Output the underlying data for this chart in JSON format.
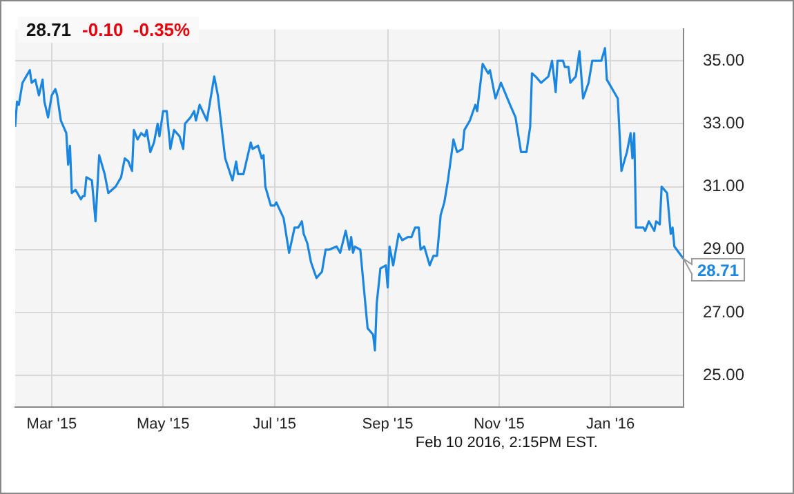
{
  "chart_data": {
    "type": "line",
    "title": "28.71",
    "subtitle": "-0.10  -0.35%",
    "annotations": [
      "Feb 10 2016, 2:15PM EST.",
      {
        "text": "28.71",
        "x": "2016-02-10",
        "y": 28.71
      }
    ],
    "x": [
      "2015-02-09",
      "2015-02-10",
      "2015-02-11",
      "2015-02-13",
      "2015-02-15",
      "2015-02-17",
      "2015-02-18",
      "2015-02-20",
      "2015-02-22",
      "2015-02-24",
      "2015-02-25",
      "2015-02-27",
      "2015-03-01",
      "2015-03-03",
      "2015-03-04",
      "2015-03-06",
      "2015-03-09",
      "2015-03-10",
      "2015-03-11",
      "2015-03-12",
      "2015-03-14",
      "2015-03-17",
      "2015-03-18",
      "2015-03-19",
      "2015-03-20",
      "2015-03-23",
      "2015-03-25",
      "2015-03-27",
      "2015-03-30",
      "2015-04-01",
      "2015-04-05",
      "2015-04-08",
      "2015-04-10",
      "2015-04-12",
      "2015-04-14",
      "2015-04-15",
      "2015-04-17",
      "2015-04-19",
      "2015-04-21",
      "2015-04-22",
      "2015-04-24",
      "2015-04-26",
      "2015-04-28",
      "2015-04-29",
      "2015-05-01",
      "2015-05-03",
      "2015-05-05",
      "2015-05-07",
      "2015-05-10",
      "2015-05-12",
      "2015-05-13",
      "2015-05-16",
      "2015-05-18",
      "2015-05-19",
      "2015-05-21",
      "2015-05-25",
      "2015-05-29",
      "2015-05-31",
      "2015-06-04",
      "2015-06-08",
      "2015-06-10",
      "2015-06-11",
      "2015-06-14",
      "2015-06-18",
      "2015-06-19",
      "2015-06-22",
      "2015-06-24",
      "2015-06-25",
      "2015-06-26",
      "2015-06-29",
      "2015-07-01",
      "2015-07-02",
      "2015-07-06",
      "2015-07-09",
      "2015-07-12",
      "2015-07-14",
      "2015-07-16",
      "2015-07-17",
      "2015-07-19",
      "2015-07-21",
      "2015-07-24",
      "2015-07-27",
      "2015-07-29",
      "2015-07-31",
      "2015-08-04",
      "2015-08-06",
      "2015-08-09",
      "2015-08-11",
      "2015-08-12",
      "2015-08-13",
      "2015-08-14",
      "2015-08-17",
      "2015-08-21",
      "2015-08-24",
      "2015-08-25",
      "2015-08-26",
      "2015-08-28",
      "2015-08-31",
      "2015-09-01",
      "2015-09-02",
      "2015-09-04",
      "2015-09-07",
      "2015-09-09",
      "2015-09-12",
      "2015-09-14",
      "2015-09-16",
      "2015-09-18",
      "2015-09-19",
      "2015-09-21",
      "2015-09-24",
      "2015-09-26",
      "2015-09-28",
      "2015-09-30",
      "2015-10-02",
      "2015-10-04",
      "2015-10-07",
      "2015-10-09",
      "2015-10-12",
      "2015-10-13",
      "2015-10-16",
      "2015-10-19",
      "2015-10-20",
      "2015-10-23",
      "2015-10-26",
      "2015-10-27",
      "2015-10-30",
      "2015-11-02",
      "2015-11-07",
      "2015-11-10",
      "2015-11-13",
      "2015-11-16",
      "2015-11-18",
      "2015-11-19",
      "2015-11-21",
      "2015-11-24",
      "2015-11-26",
      "2015-11-28",
      "2015-11-30",
      "2015-12-02",
      "2015-12-03",
      "2015-12-06",
      "2015-12-07",
      "2015-12-09",
      "2015-12-10",
      "2015-12-13",
      "2015-12-15",
      "2015-12-17",
      "2015-12-20",
      "2015-12-22",
      "2015-12-27",
      "2015-12-29",
      "2015-12-30",
      "2016-01-05",
      "2016-01-07",
      "2016-01-10",
      "2016-01-12",
      "2016-01-13",
      "2016-01-14",
      "2016-01-15",
      "2016-01-19",
      "2016-01-20",
      "2016-01-22",
      "2016-01-25",
      "2016-01-26",
      "2016-01-28",
      "2016-01-29",
      "2016-02-01",
      "2016-02-03",
      "2016-02-04",
      "2016-02-05",
      "2016-02-10"
    ],
    "series": [
      {
        "color": "#1a86e0",
        "values": [
          32.9,
          33.7,
          33.6,
          34.3,
          34.5,
          34.7,
          34.3,
          34.4,
          33.9,
          34.4,
          33.7,
          33.2,
          33.9,
          34.1,
          33.9,
          33.1,
          32.7,
          31.7,
          32.3,
          30.8,
          30.9,
          30.6,
          30.7,
          30.7,
          31.3,
          31.2,
          29.9,
          32.0,
          31.4,
          30.8,
          31.0,
          31.3,
          31.9,
          31.8,
          31.5,
          32.8,
          32.5,
          32.7,
          32.6,
          32.8,
          32.1,
          32.4,
          33.0,
          32.6,
          33.4,
          33.4,
          32.2,
          32.8,
          32.6,
          32.2,
          33.0,
          33.2,
          33.4,
          33.1,
          33.6,
          33.1,
          34.5,
          33.9,
          31.9,
          31.2,
          31.8,
          31.4,
          31.4,
          32.4,
          32.2,
          32.3,
          31.9,
          32.0,
          31.0,
          30.4,
          30.4,
          30.5,
          30.0,
          28.9,
          29.7,
          29.7,
          29.9,
          29.5,
          29.2,
          28.6,
          28.1,
          28.3,
          29.0,
          29.0,
          29.1,
          28.9,
          29.6,
          29.0,
          29.4,
          28.9,
          29.1,
          29.0,
          26.5,
          26.3,
          25.8,
          27.3,
          28.4,
          28.5,
          27.8,
          29.1,
          28.5,
          29.5,
          29.3,
          29.4,
          29.4,
          29.7,
          29.7,
          29.0,
          29.1,
          28.5,
          28.8,
          28.8,
          30.1,
          30.5,
          31.2,
          32.5,
          32.1,
          32.2,
          32.8,
          33.1,
          33.6,
          33.4,
          34.9,
          34.6,
          34.7,
          33.8,
          34.3,
          33.6,
          33.2,
          32.1,
          32.1,
          32.9,
          34.6,
          34.5,
          34.3,
          34.4,
          34.5,
          35.0,
          34.0,
          35.0,
          35.0,
          34.8,
          34.8,
          34.3,
          34.5,
          35.3,
          33.8,
          34.3,
          35.0,
          35.0,
          35.4,
          34.4,
          33.8,
          31.5,
          32.1,
          32.7,
          31.9,
          32.7,
          29.7,
          29.7,
          29.6,
          29.9,
          29.6,
          29.9,
          29.8,
          31.0,
          30.8,
          29.5,
          29.7,
          29.1,
          28.71
        ]
      }
    ],
    "xlim": [
      "2015-02-09",
      "2016-02-10"
    ],
    "xticks": [
      {
        "value": "2015-03-01",
        "label": "Mar '15"
      },
      {
        "value": "2015-05-01",
        "label": "May '15"
      },
      {
        "value": "2015-07-01",
        "label": "Jul '15"
      },
      {
        "value": "2015-09-01",
        "label": "Sep '15"
      },
      {
        "value": "2015-11-01",
        "label": "Nov '15"
      },
      {
        "value": "2016-01-01",
        "label": "Jan '16"
      }
    ],
    "ylim": [
      24,
      36
    ],
    "yticks": [
      {
        "value": 25,
        "label": "25.00"
      },
      {
        "value": 27,
        "label": "27.00"
      },
      {
        "value": 29,
        "label": "29.00"
      },
      {
        "value": 31,
        "label": "31.00"
      },
      {
        "value": 33,
        "label": "33.00"
      },
      {
        "value": 35,
        "label": "35.00"
      }
    ],
    "grid": true,
    "marker": "none"
  }
}
